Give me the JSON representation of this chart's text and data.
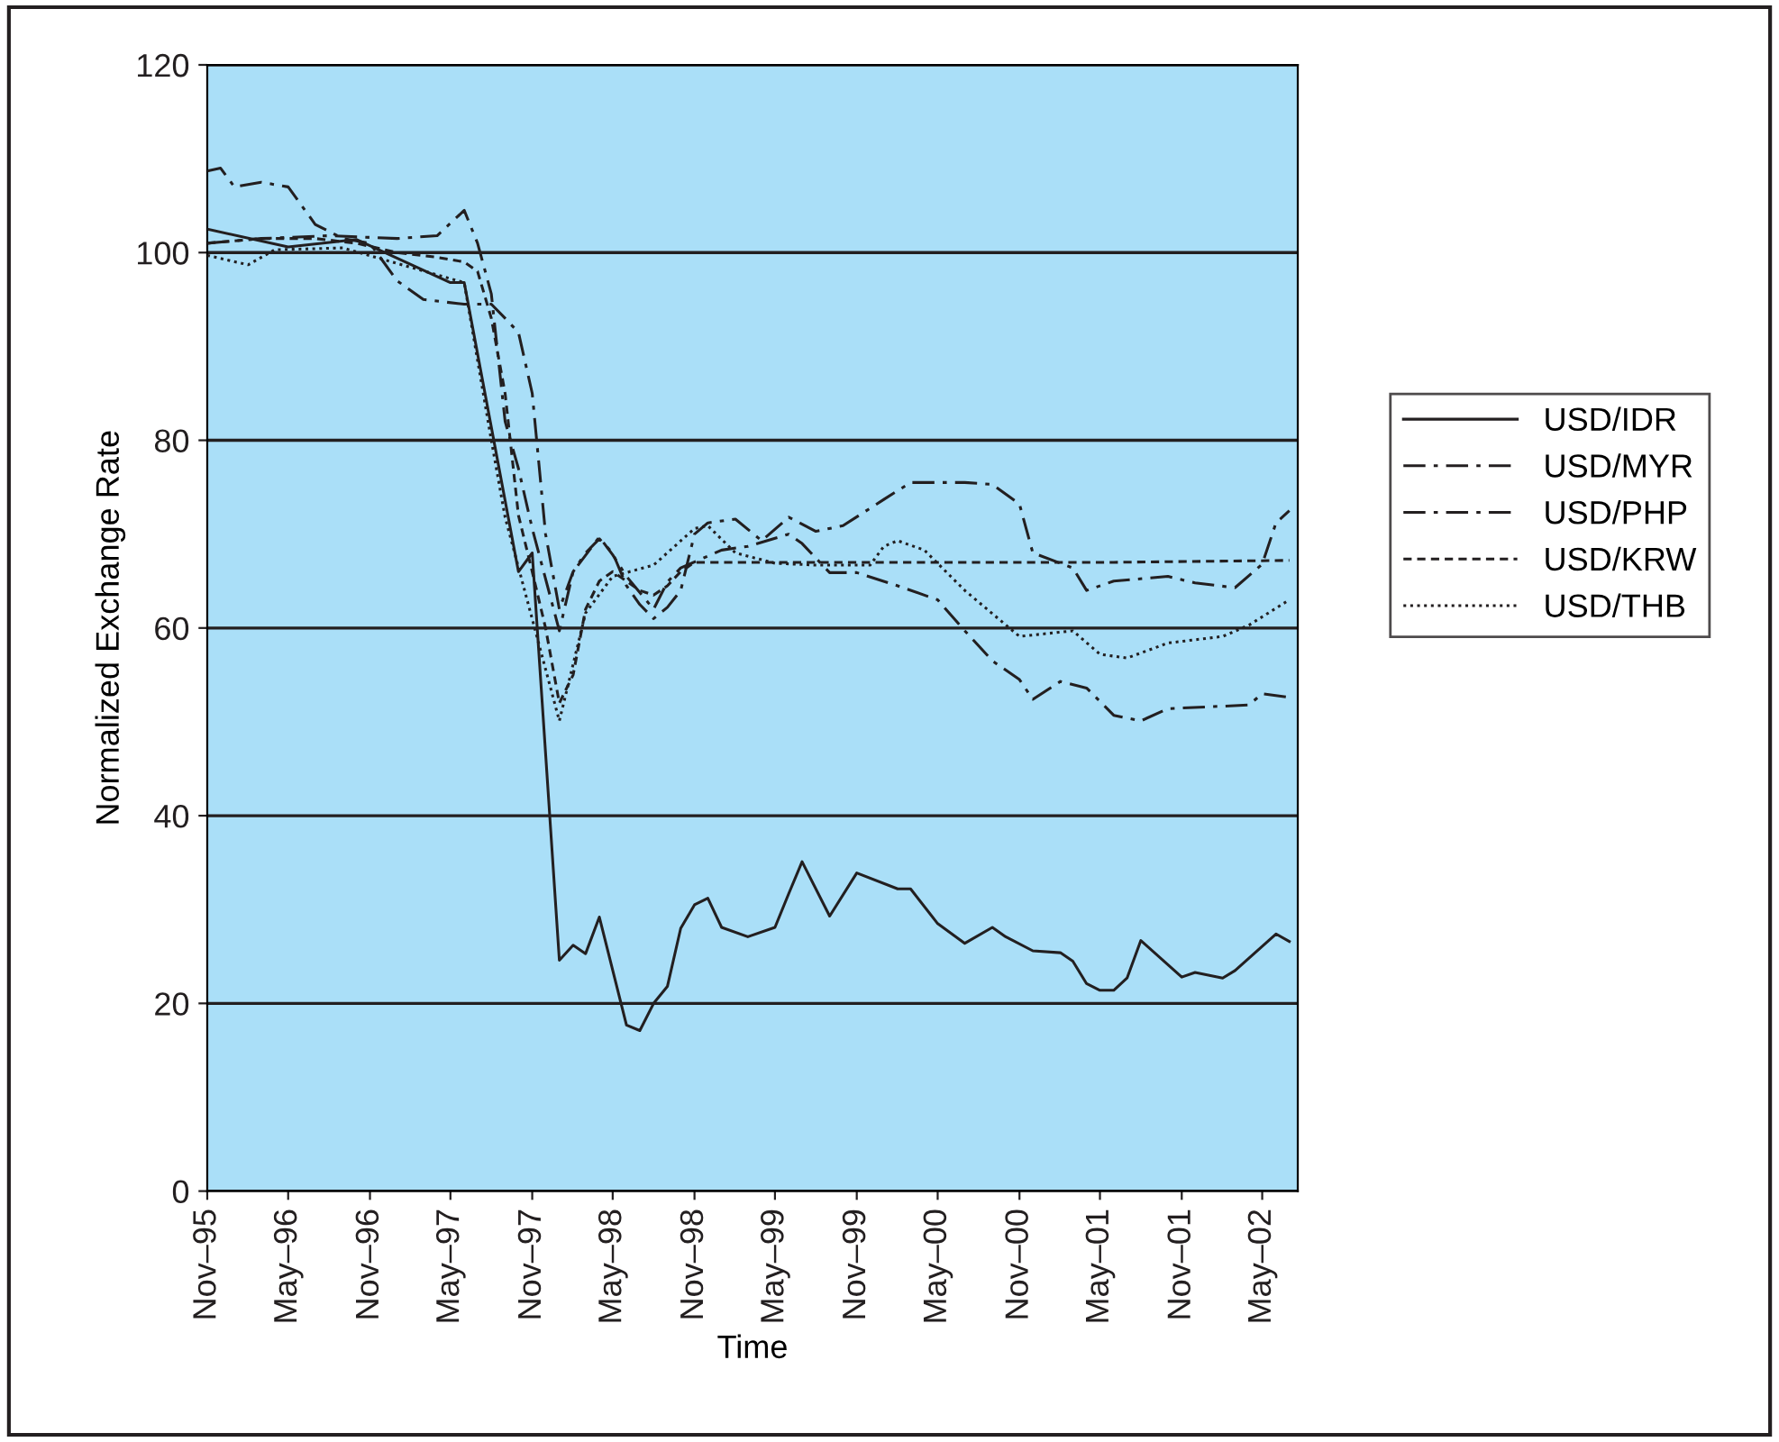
{
  "chart_data": {
    "type": "line",
    "xlabel": "Time",
    "ylabel": "Normalized Exchange Rate",
    "ylim": [
      0,
      120
    ],
    "yticks": [
      0,
      20,
      40,
      60,
      80,
      100,
      120
    ],
    "xlim": [
      "1995-11",
      "2002-07-20"
    ],
    "xticks": [
      {
        "value": "1995-11",
        "label": "Nov–95"
      },
      {
        "value": "1996-05",
        "label": "May–96"
      },
      {
        "value": "1996-11",
        "label": "Nov–96"
      },
      {
        "value": "1997-05",
        "label": "May–97"
      },
      {
        "value": "1997-11",
        "label": "Nov–97"
      },
      {
        "value": "1998-05",
        "label": "May–98"
      },
      {
        "value": "1998-11",
        "label": "Nov–98"
      },
      {
        "value": "1999-05",
        "label": "May–99"
      },
      {
        "value": "1999-11",
        "label": "Nov–99"
      },
      {
        "value": "2000-05",
        "label": "May–00"
      },
      {
        "value": "2000-11",
        "label": "Nov–00"
      },
      {
        "value": "2001-05",
        "label": "May–01"
      },
      {
        "value": "2001-11",
        "label": "Nov–01"
      },
      {
        "value": "2002-05",
        "label": "May–02"
      }
    ],
    "grid": "y",
    "legend": "right",
    "marker": "none",
    "series": [
      {
        "name": "USD/IDR",
        "color": "#231f20",
        "line_style": "solid",
        "x": [
          "1995-11",
          "1996-05",
          "1996-10",
          "1997-05",
          "1997-06",
          "1997-10",
          "1997-11",
          "1998-01",
          "1998-02",
          "1998-03",
          "1998-04",
          "1998-06",
          "1998-07",
          "1998-08",
          "1998-09",
          "1998-10",
          "1998-11",
          "1998-12",
          "1999-01",
          "1999-03",
          "1999-05",
          "1999-06",
          "1999-07",
          "1999-09",
          "1999-11",
          "2000-02",
          "2000-03",
          "2000-05",
          "2000-07",
          "2000-09",
          "2000-10",
          "2000-12",
          "2001-02",
          "2001-03",
          "2001-04",
          "2001-05",
          "2001-06",
          "2001-07",
          "2001-08",
          "2001-11",
          "2001-12",
          "2002-02",
          "2002-03",
          "2002-06",
          "2002-07"
        ],
        "values": [
          102.5,
          100.6,
          101.4,
          96.8,
          96.8,
          66,
          68,
          24.6,
          26.2,
          25.3,
          29.2,
          17.7,
          17.1,
          20.0,
          21.8,
          28.0,
          30.5,
          31.2,
          28.1,
          27.1,
          28.1,
          31.7,
          35.1,
          29.3,
          33.9,
          32.2,
          32.2,
          28.5,
          26.4,
          28.1,
          27.1,
          25.6,
          25.4,
          24.5,
          22.1,
          21.4,
          21.4,
          22.7,
          26.7,
          22.8,
          23.3,
          22.7,
          23.5,
          27.4,
          26.6
        ]
      },
      {
        "name": "USD/MYR",
        "color": "#231f20",
        "line_style": "dashdot",
        "x": [
          "1995-11",
          "1996-03",
          "1996-08",
          "1997-01",
          "1997-04",
          "1997-06",
          "1997-07",
          "1997-08",
          "1997-09",
          "1997-10",
          "1997-11",
          "1998-01",
          "1998-02",
          "1998-04",
          "1998-05",
          "1998-06",
          "1998-08",
          "1998-09",
          "1998-10",
          "1999-01",
          "1999-03",
          "1999-06",
          "1999-07",
          "1999-09",
          "1999-11",
          "2000-02",
          "2000-05",
          "2000-07",
          "2000-09",
          "2000-11",
          "2000-12",
          "2001-02",
          "2001-04",
          "2001-06",
          "2001-08",
          "2001-10",
          "2002-01",
          "2002-04",
          "2002-05",
          "2002-07"
        ],
        "values": [
          101,
          101.5,
          101.8,
          101.5,
          101.8,
          104.5,
          101,
          95.6,
          82,
          77,
          70.6,
          59.7,
          66,
          69.7,
          67.8,
          65.5,
          62,
          64.9,
          66.4,
          68.3,
          68.7,
          70,
          69,
          65.9,
          65.9,
          64.5,
          63,
          59.7,
          56.5,
          54.5,
          52.4,
          54.3,
          53.6,
          50.7,
          50.1,
          51.4,
          51.6,
          51.8,
          53,
          52.6
        ]
      },
      {
        "name": "USD/PHP",
        "color": "#231f20",
        "line_style": "dashdot",
        "x": [
          "1995-11",
          "1995-12",
          "1996-01",
          "1996-03",
          "1996-05",
          "1996-07",
          "1996-09",
          "1996-11",
          "1997-01",
          "1997-03",
          "1997-06",
          "1997-08",
          "1997-09",
          "1997-10",
          "1997-11",
          "1997-12",
          "1998-01",
          "1998-02",
          "1998-03",
          "1998-04",
          "1998-05",
          "1998-06",
          "1998-07",
          "1998-08",
          "1998-09",
          "1998-10",
          "1998-11",
          "1998-12",
          "1999-02",
          "1999-04",
          "1999-06",
          "1999-08",
          "1999-10",
          "2000-01",
          "2000-03",
          "2000-07",
          "2000-09",
          "2000-11",
          "2000-12",
          "2001-03",
          "2001-04",
          "2001-06",
          "2001-10",
          "2001-12",
          "2002-03",
          "2002-05",
          "2002-06",
          "2002-07"
        ],
        "values": [
          108.7,
          109,
          107,
          107.5,
          107,
          103,
          101.5,
          101,
          97,
          95,
          94.5,
          94.5,
          93,
          91.5,
          85,
          70,
          62,
          66,
          68,
          69.5,
          68,
          64.5,
          62.5,
          61,
          62.2,
          64,
          70,
          71.2,
          71.6,
          69.3,
          71.8,
          70.3,
          70.9,
          73.7,
          75.5,
          75.5,
          75.3,
          73.2,
          68,
          66.4,
          64,
          65,
          65.5,
          64.8,
          64.3,
          66.8,
          71.2,
          72.5
        ]
      },
      {
        "name": "USD/KRW",
        "color": "#231f20",
        "line_style": "dashed",
        "x": [
          "1995-11",
          "1996-03",
          "1996-07",
          "1996-10",
          "1997-01",
          "1997-04",
          "1997-06",
          "1997-07",
          "1997-08",
          "1997-09",
          "1997-10",
          "1997-11",
          "1997-12",
          "1998-01",
          "1998-02",
          "1998-03",
          "1998-04",
          "1998-05",
          "1998-06",
          "1998-07",
          "1998-08",
          "1998-09",
          "1998-10",
          "1998-11",
          "1999-06",
          "2000-06",
          "2001-06",
          "2002-07"
        ],
        "values": [
          101,
          101.5,
          101.5,
          101,
          100,
          99.5,
          99,
          98,
          93,
          85,
          72,
          66,
          60,
          52,
          55,
          62,
          65,
          66,
          65,
          64,
          63.5,
          64.5,
          66,
          67,
          67,
          67,
          67,
          67.2
        ]
      },
      {
        "name": "USD/THB",
        "color": "#231f20",
        "line_style": "dotted",
        "x": [
          "1995-11",
          "1996-02",
          "1996-04",
          "1996-09",
          "1997-06",
          "1997-08",
          "1997-09",
          "1998-01",
          "1998-03",
          "1998-05",
          "1998-08",
          "1998-11",
          "1998-12",
          "1999-02",
          "1999-05",
          "1999-08",
          "1999-12",
          "2000-01",
          "2000-02",
          "2000-04",
          "2000-07",
          "2000-11",
          "2001-03",
          "2001-05",
          "2001-07",
          "2001-10",
          "2002-02",
          "2002-04",
          "2002-07"
        ],
        "values": [
          99.7,
          98.7,
          100.3,
          100.5,
          96.8,
          80,
          71.8,
          50.1,
          61.6,
          65.5,
          66.7,
          70.6,
          70.9,
          68,
          66.9,
          66.7,
          66.7,
          68.7,
          69.3,
          68.3,
          64,
          59.1,
          59.7,
          57.2,
          56.8,
          58.4,
          59.1,
          60.3,
          63
        ]
      }
    ]
  }
}
